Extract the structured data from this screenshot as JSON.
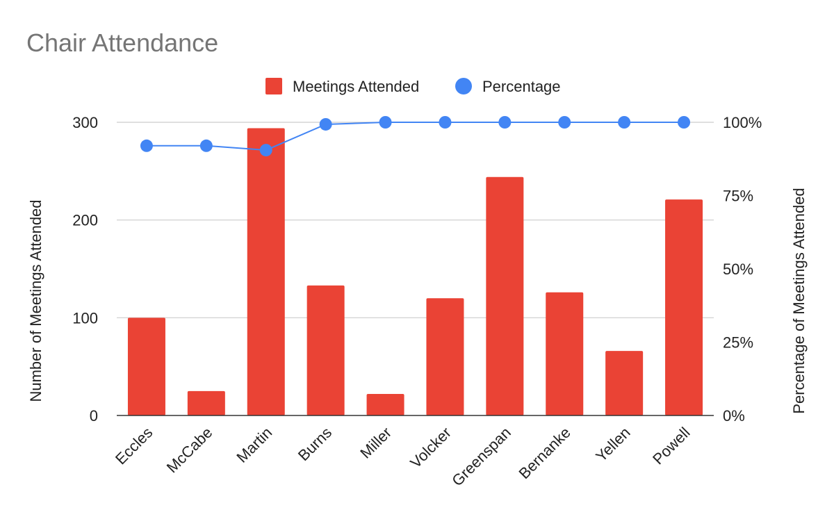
{
  "chart_data": {
    "type": "bar",
    "title": "Chair Attendance",
    "categories": [
      "Eccles",
      "McCabe",
      "Martin",
      "Burns",
      "Miller",
      "Volcker",
      "Greenspan",
      "Bernanke",
      "Yellen",
      "Powell"
    ],
    "series": [
      {
        "name": "Meetings Attended",
        "kind": "bar",
        "axis": "left",
        "color": "#ea4335",
        "values": [
          100,
          25,
          294,
          133,
          22,
          120,
          244,
          126,
          66,
          221
        ]
      },
      {
        "name": "Percentage",
        "kind": "line",
        "axis": "right",
        "color": "#4285f4",
        "values": [
          92,
          92,
          90.5,
          99.3,
          100,
          100,
          100,
          100,
          100,
          100
        ]
      }
    ],
    "ylabel_left": "Number of Meetings Attended",
    "ylabel_right": "Percentage of Meetings Attended",
    "ylim_left": [
      0,
      300
    ],
    "ylim_right": [
      0,
      100
    ],
    "yticks_left": [
      "0",
      "100",
      "200",
      "300"
    ],
    "yticks_right": [
      "0%",
      "25%",
      "50%",
      "75%",
      "100%"
    ],
    "legend_position": "top-center",
    "grid": true
  }
}
